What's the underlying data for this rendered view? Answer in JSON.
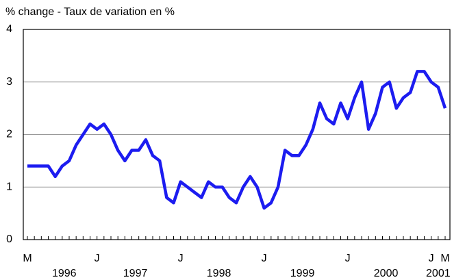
{
  "chart_data": {
    "type": "line",
    "title": "% change - Taux de variation en %",
    "categories": [
      "M",
      null,
      null,
      null,
      null,
      null,
      null,
      null,
      null,
      null,
      "J",
      null,
      null,
      null,
      null,
      null,
      null,
      null,
      null,
      null,
      null,
      null,
      "J",
      null,
      null,
      null,
      null,
      null,
      null,
      null,
      null,
      null,
      null,
      null,
      "J",
      null,
      null,
      null,
      null,
      null,
      null,
      null,
      null,
      null,
      null,
      null,
      "J",
      null,
      null,
      null,
      null,
      null,
      null,
      null,
      null,
      null,
      null,
      null,
      "J",
      null,
      "M"
    ],
    "year_labels": [
      "1996",
      "1997",
      "1998",
      "1999",
      "2000",
      "2001"
    ],
    "series": [
      {
        "color": "#1c1cf0",
        "values": [
          1.4,
          1.4,
          1.4,
          1.4,
          1.2,
          1.4,
          1.5,
          1.8,
          2.0,
          2.2,
          2.1,
          2.2,
          2.0,
          1.7,
          1.5,
          1.7,
          1.7,
          1.9,
          1.6,
          1.5,
          0.8,
          0.7,
          1.1,
          1.0,
          0.9,
          0.8,
          1.1,
          1.0,
          1.0,
          0.8,
          0.7,
          1.0,
          1.2,
          1.0,
          0.6,
          0.7,
          1.0,
          1.7,
          1.6,
          1.6,
          1.8,
          2.1,
          2.6,
          2.3,
          2.2,
          2.6,
          2.3,
          2.7,
          3.0,
          2.1,
          2.4,
          2.9,
          3.0,
          2.5,
          2.7,
          2.8,
          3.2,
          3.2,
          3.0,
          2.9,
          2.5
        ]
      }
    ],
    "ylim": [
      0,
      4
    ],
    "yticks": [
      0,
      1,
      2,
      3,
      4
    ],
    "grid": true
  }
}
